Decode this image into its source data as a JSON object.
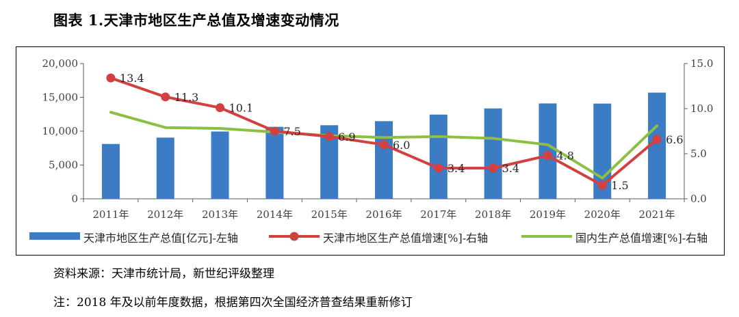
{
  "title": "图表 1.天津市地区生产总值及增速变动情况",
  "notes": {
    "source": "资料来源：天津市统计局，新世纪评级整理",
    "revision": "注：2018 年及以前年度数据，根据第四次全国经济普查结果重新修订"
  },
  "colors": {
    "bar": "#3b7cc4",
    "tianjin_growth": "#d24040",
    "national_growth": "#8cbf44",
    "axis": "#595959"
  },
  "chart_data": {
    "type": "bar+line",
    "title": "图表 1.天津市地区生产总值及增速变动情况",
    "categories": [
      "2011年",
      "2012年",
      "2013年",
      "2014年",
      "2015年",
      "2016年",
      "2017年",
      "2018年",
      "2019年",
      "2020年",
      "2021年"
    ],
    "left_axis": {
      "range": [
        0,
        20000
      ],
      "ticks": [
        "0",
        "5,000",
        "10,000",
        "15,000",
        "20,000"
      ],
      "tick_values": [
        0,
        5000,
        10000,
        15000,
        20000
      ]
    },
    "right_axis": {
      "range": [
        0,
        15
      ],
      "ticks": [
        "0.0",
        "5.0",
        "10.0",
        "15.0"
      ],
      "tick_values": [
        0,
        5,
        10,
        15
      ]
    },
    "series": [
      {
        "name": "天津市地区生产总值[亿元]-左轴",
        "type": "bar",
        "axis": "left",
        "values": [
          8110,
          9050,
          9950,
          10640,
          10880,
          11480,
          12450,
          13360,
          14100,
          14080,
          15700
        ]
      },
      {
        "name": "天津市地区生产总值增速[%]-右轴",
        "type": "line",
        "axis": "right",
        "values": [
          13.4,
          11.3,
          10.1,
          7.5,
          6.9,
          6.0,
          3.4,
          3.4,
          4.8,
          1.5,
          6.6
        ],
        "labels": [
          "13.4",
          "11.3",
          "10.1",
          "7.5",
          "6.9",
          "6.0",
          "3.4",
          "3.4",
          "4.8",
          "1.5",
          "6.6"
        ]
      },
      {
        "name": "国内生产总值增速[%]-右轴",
        "type": "line",
        "axis": "right",
        "values": [
          9.6,
          7.9,
          7.8,
          7.4,
          7.0,
          6.8,
          6.9,
          6.7,
          6.0,
          2.3,
          8.1
        ]
      }
    ],
    "legend": "bottom"
  }
}
